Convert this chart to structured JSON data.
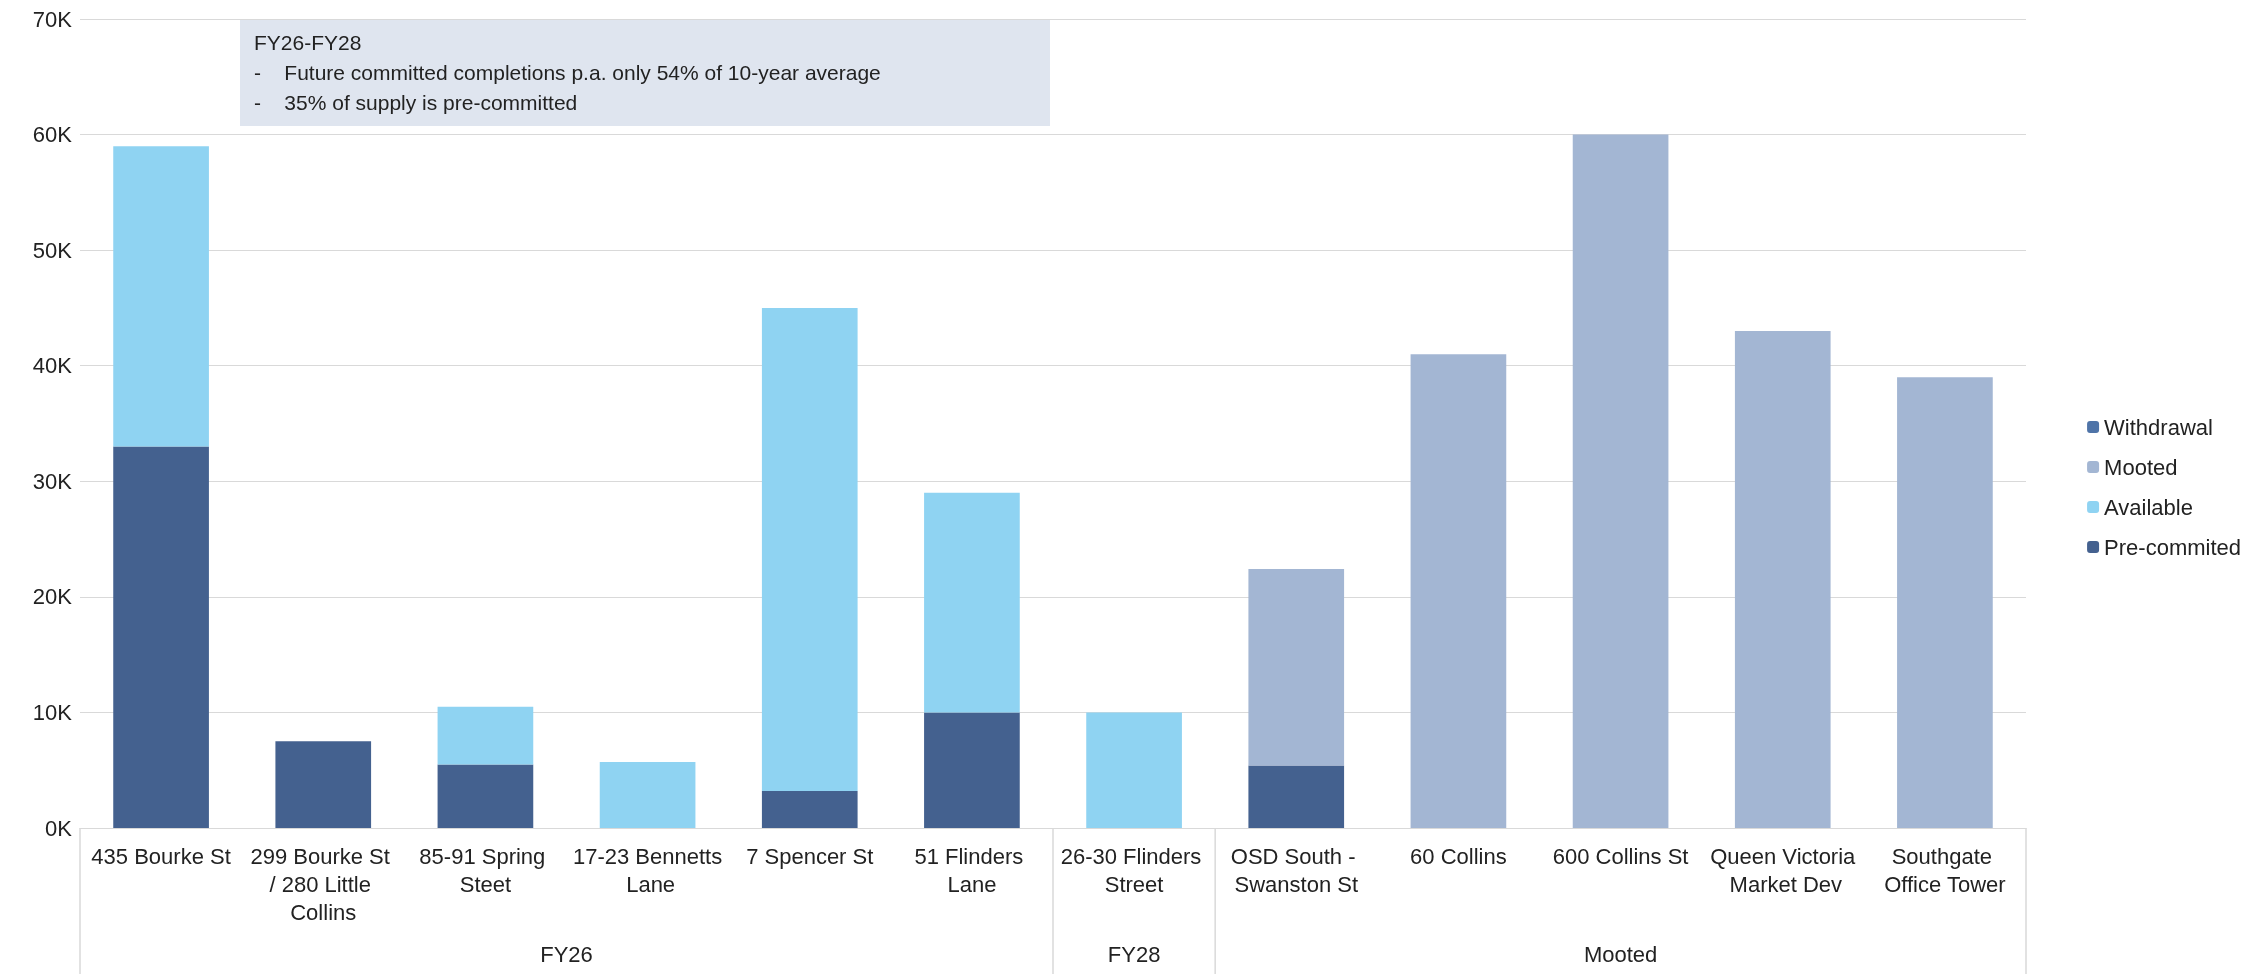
{
  "chart_data": {
    "type": "bar",
    "stacked": true,
    "categories": [
      "435 Bourke St",
      "299 Bourke St / 280 Little Collins",
      "85-91 Spring Steet",
      "17-23 Bennetts Lane",
      "7 Spencer St",
      "51 Flinders Lane",
      "26-30 Flinders Street",
      "OSD South - Swanston St",
      "60 Collins",
      "600 Collins St",
      "Queen Victoria Market Dev",
      "Southgate Office Tower"
    ],
    "series": [
      {
        "name": "Pre-commited",
        "color": "#44618f",
        "values": [
          33,
          7.5,
          5.5,
          null,
          3.2,
          10,
          null,
          5.4,
          null,
          null,
          null,
          null
        ]
      },
      {
        "name": "Available",
        "color": "#8fd3f2",
        "values": [
          26,
          null,
          5,
          5.7,
          41.8,
          19,
          10,
          null,
          null,
          null,
          null,
          null
        ]
      },
      {
        "name": "Mooted",
        "color": "#a3b6d3",
        "values": [
          null,
          null,
          null,
          null,
          null,
          null,
          null,
          17,
          41,
          60,
          43,
          39
        ]
      },
      {
        "name": "Withdrawal",
        "color": "#4f74a8",
        "values": [
          null,
          null,
          null,
          null,
          null,
          null,
          null,
          null,
          null,
          null,
          null,
          null
        ]
      }
    ],
    "ylim": [
      0,
      70
    ],
    "yticks": [
      {
        "value": 0,
        "label": "0K"
      },
      {
        "value": 10,
        "label": "10K"
      },
      {
        "value": 20,
        "label": "20K"
      },
      {
        "value": 30,
        "label": "30K"
      },
      {
        "value": 40,
        "label": "40K"
      },
      {
        "value": 50,
        "label": "50K"
      },
      {
        "value": 60,
        "label": "60K"
      },
      {
        "value": 70,
        "label": "70K"
      }
    ],
    "grid": "y",
    "legend": "right",
    "annotations": [
      "FY26-FY28",
      "-    Future committed completions p.a. only 54% of 10-year average",
      "-    35% of supply is pre-committed",
      "FY26",
      "FY28",
      "Mooted"
    ]
  }
}
